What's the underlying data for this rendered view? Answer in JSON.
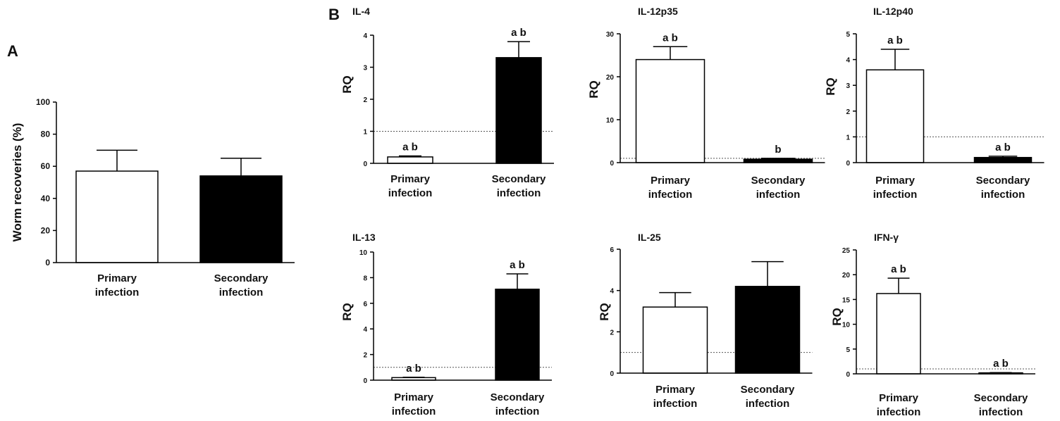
{
  "panel_labels": [
    "A",
    "B"
  ],
  "colors": {
    "primary_fill": "#ffffff",
    "secondary_fill": "#000000",
    "stroke": "#000000",
    "reference_line": "#555555"
  },
  "chart_data": [
    {
      "type": "bar",
      "panel": "A",
      "title": "",
      "xlabel": "",
      "ylabel": "Worm recoveries (%)",
      "categories": [
        "Primary infection",
        "Secondary infection"
      ],
      "values": [
        57,
        54
      ],
      "error": [
        13,
        11
      ],
      "ylim": [
        0,
        100
      ],
      "yticks": [
        0,
        20,
        40,
        60,
        80,
        100
      ],
      "annotations": [
        "",
        ""
      ],
      "reference_line": null
    },
    {
      "type": "bar",
      "panel": "B",
      "title": "IL-4",
      "xlabel": "",
      "ylabel": "RQ",
      "categories": [
        "Primary infection",
        "Secondary infection"
      ],
      "values": [
        0.2,
        3.3
      ],
      "error": [
        0.03,
        0.5
      ],
      "ylim": [
        0,
        4
      ],
      "yticks": [
        0,
        1,
        2,
        3,
        4
      ],
      "annotations": [
        "a b",
        "a b"
      ],
      "reference_line": 1
    },
    {
      "type": "bar",
      "title": "IL-12p35",
      "xlabel": "",
      "ylabel": "RQ",
      "categories": [
        "Primary infection",
        "Secondary infection"
      ],
      "values": [
        24,
        0.8
      ],
      "error": [
        3,
        0.2
      ],
      "ylim": [
        0,
        30
      ],
      "yticks": [
        0,
        10,
        20,
        30
      ],
      "annotations": [
        "a b",
        "b"
      ],
      "reference_line": 1
    },
    {
      "type": "bar",
      "title": "IL-12p40",
      "xlabel": "",
      "ylabel": "RQ",
      "categories": [
        "Primary infection",
        "Secondary infection"
      ],
      "values": [
        3.6,
        0.2
      ],
      "error": [
        0.8,
        0.05
      ],
      "ylim": [
        0,
        5
      ],
      "yticks": [
        0,
        1,
        2,
        3,
        4,
        5
      ],
      "annotations": [
        "a b",
        "a b"
      ],
      "reference_line": 1
    },
    {
      "type": "bar",
      "title": "IL-13",
      "xlabel": "",
      "ylabel": "RQ",
      "categories": [
        "Primary infection",
        "Secondary infection"
      ],
      "values": [
        0.2,
        7.1
      ],
      "error": [
        0.03,
        1.2
      ],
      "ylim": [
        0,
        10
      ],
      "yticks": [
        0,
        2,
        4,
        6,
        8,
        10
      ],
      "annotations": [
        "a b",
        "a b"
      ],
      "reference_line": 1
    },
    {
      "type": "bar",
      "title": "IL-25",
      "xlabel": "",
      "ylabel": "RQ",
      "categories": [
        "Primary infection",
        "Secondary infection"
      ],
      "values": [
        3.2,
        4.2
      ],
      "error": [
        0.7,
        1.2
      ],
      "ylim": [
        0,
        6
      ],
      "yticks": [
        0,
        2,
        4,
        6
      ],
      "annotations": [
        "",
        ""
      ],
      "reference_line": 1
    },
    {
      "type": "bar",
      "title": "IFN-γ",
      "xlabel": "",
      "ylabel": "RQ",
      "categories": [
        "Primary infection",
        "Secondary infection"
      ],
      "values": [
        16.2,
        0.2
      ],
      "error": [
        3.1,
        0.05
      ],
      "ylim": [
        0,
        25
      ],
      "yticks": [
        0,
        5,
        10,
        15,
        20,
        25
      ],
      "annotations": [
        "a b",
        "a b"
      ],
      "reference_line": 1
    }
  ]
}
